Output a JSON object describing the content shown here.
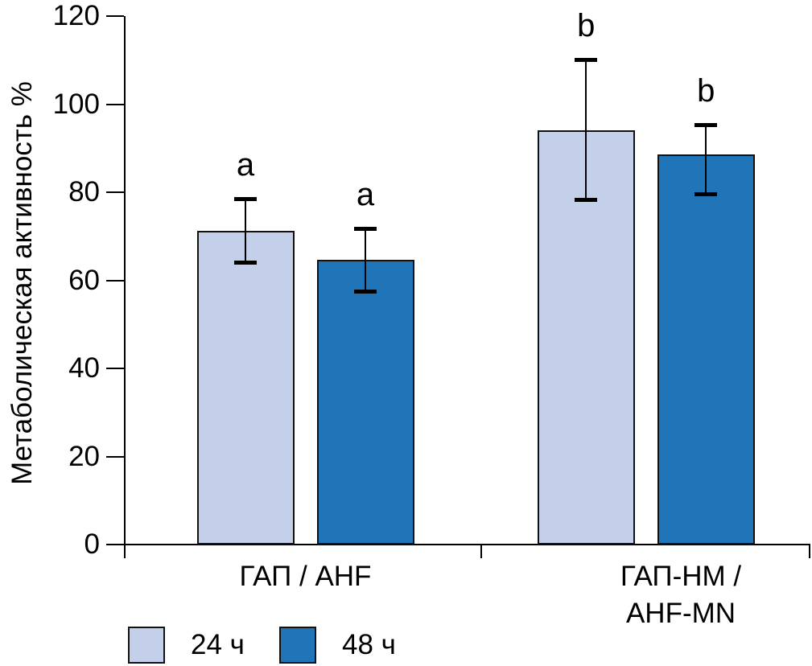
{
  "figure": {
    "background": "#ffffff"
  },
  "chart_data": {
    "type": "bar",
    "title": "",
    "ylabel": "Метаболическая активность %",
    "xlabel": "",
    "ylim": [
      0,
      120
    ],
    "yticks": [
      0,
      20,
      40,
      60,
      80,
      100,
      120
    ],
    "categories": [
      "ГАП / AHF",
      "ГАП-НМ /\nAHF-MN"
    ],
    "series": [
      {
        "name": "24 ч",
        "color": "#c4cfe9",
        "values": [
          71.3,
          94.0
        ],
        "err_low": [
          64.0,
          78.2
        ],
        "err_high": [
          78.6,
          110.2
        ],
        "letters": [
          "a",
          "b"
        ]
      },
      {
        "name": "48 ч",
        "color": "#2074b8",
        "values": [
          64.6,
          88.5
        ],
        "err_low": [
          57.3,
          79.5
        ],
        "err_high": [
          71.8,
          95.3
        ],
        "letters": [
          "a",
          "b"
        ]
      }
    ],
    "legend": {
      "entries": [
        "24 ч",
        "48 ч"
      ],
      "position": "bottom-left"
    },
    "grid": false,
    "error_bars": true,
    "bar_edge_color": "#111111",
    "axis_color": "#000000"
  }
}
